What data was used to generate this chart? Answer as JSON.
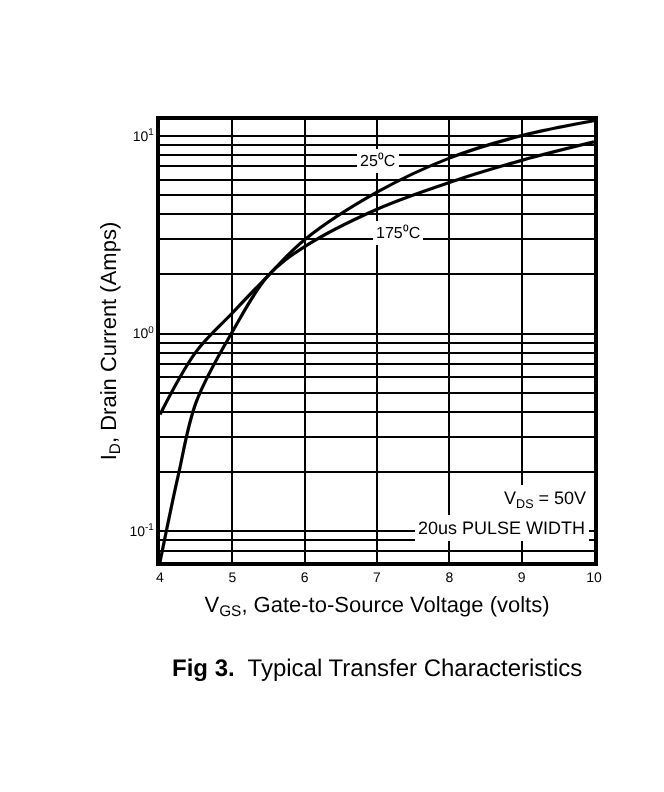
{
  "chart_data": {
    "type": "line",
    "title": "Fig 3.  Typical Transfer Characteristics",
    "xlabel": "V$_{GS}$, Gate-to-Source Voltage (volts)",
    "ylabel": "I$_{D}$, Drain Current (Amps)",
    "log": "y",
    "grid": true,
    "marker": "none",
    "line_style": "solid",
    "xlim": [
      4,
      10
    ],
    "xticks": [
      4,
      5,
      6,
      7,
      8,
      9,
      10
    ],
    "ylim": [
      0.07,
      12
    ],
    "yticks": [
      {
        "value": 0.08,
        "label": null
      },
      {
        "value": 0.09,
        "label": null
      },
      {
        "value": 0.1,
        "label": "10$^{-1}$"
      },
      {
        "value": 0.2,
        "label": null
      },
      {
        "value": 0.3,
        "label": null
      },
      {
        "value": 0.4,
        "label": null
      },
      {
        "value": 0.5,
        "label": null
      },
      {
        "value": 0.6,
        "label": null
      },
      {
        "value": 0.7,
        "label": null
      },
      {
        "value": 0.8,
        "label": null
      },
      {
        "value": 0.9,
        "label": null
      },
      {
        "value": 1,
        "label": "10$^{0}$"
      },
      {
        "value": 2,
        "label": null
      },
      {
        "value": 3,
        "label": null
      },
      {
        "value": 4,
        "label": null
      },
      {
        "value": 5,
        "label": null
      },
      {
        "value": 6,
        "label": null
      },
      {
        "value": 7,
        "label": null
      },
      {
        "value": 8,
        "label": null
      },
      {
        "value": 9,
        "label": null
      },
      {
        "value": 10,
        "label": "10$^{1}$"
      }
    ],
    "series": [
      {
        "color": "#000000",
        "x": [
          4,
          4.5,
          5,
          5.5,
          6,
          7,
          8,
          9,
          10
        ],
        "values": [
          0.39,
          0.81,
          1.27,
          1.97,
          2.98,
          5.18,
          7.7,
          10,
          11.9
        ]
      },
      {
        "color": "#000000",
        "x": [
          4,
          4.25,
          4.5,
          5,
          5.5,
          6,
          7,
          8,
          9,
          10
        ],
        "values": [
          0.07,
          0.19,
          0.45,
          1.02,
          1.97,
          2.75,
          4.25,
          5.8,
          7.5,
          9.3
        ]
      }
    ],
    "annotations": [
      {
        "text": "25⁰C",
        "x": 7.0,
        "y": 7.4
      },
      {
        "text": "175⁰C",
        "x": 7.3,
        "y": 3.2
      },
      "V$_{DS}$ = 50V",
      "20us PULSE WIDTH"
    ]
  }
}
